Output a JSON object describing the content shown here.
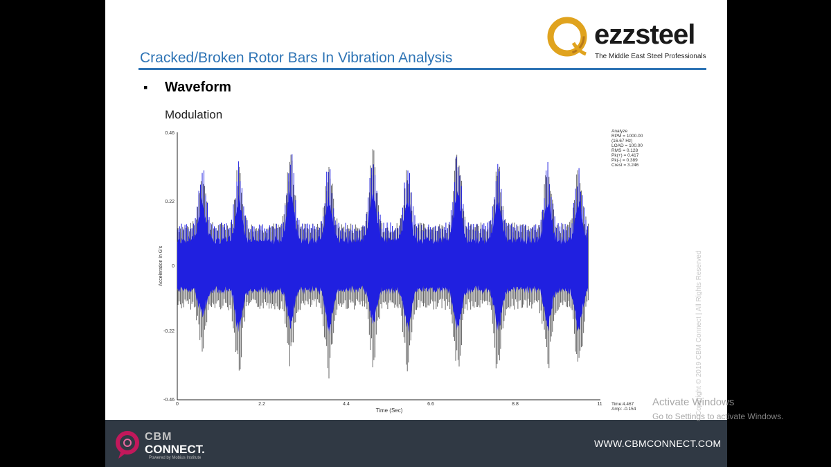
{
  "slide": {
    "title": "Cracked/Broken Rotor Bars In Vibration Analysis",
    "bullet_symbol": "▪",
    "bullet_text": "Waveform",
    "subheading": "Modulation"
  },
  "logo": {
    "word": "ezzsteel",
    "tagline": "The Middle East Steel Professionals",
    "ring_color": "#e0a31e"
  },
  "watermark": "Copyright © 2019 CBM Connect  |  All Rights Reserved",
  "footer": {
    "brand_line1": "CBM",
    "brand_line2": "CONNECT.",
    "brand_tagline": "Powered by Mobius Institute",
    "website": "WWW.CBMCONNECT.COM",
    "accent_color": "#c2185b"
  },
  "os_overlay": {
    "activate_title": "Activate Windows",
    "activate_hint": "Go to Settings to activate Windows."
  },
  "chart_data": {
    "type": "line",
    "title": "",
    "xlabel": "Time (Sec)",
    "ylabel": "Acceleration in G's",
    "xlim": [
      0,
      11
    ],
    "ylim": [
      -0.46,
      0.46
    ],
    "x_ticks": [
      "0",
      "2.2",
      "4.4",
      "6.6",
      "8.8",
      "11"
    ],
    "y_ticks": [
      "0.46",
      "0.22",
      "0",
      "-0.22",
      "-0.46"
    ],
    "grid": false,
    "series": [
      {
        "name": "",
        "color": "#2020e0",
        "envelope_color": "#555555",
        "modulation_peaks_x": [
          0.65,
          1.6,
          2.95,
          3.95,
          5.1,
          6.0,
          7.3,
          8.35,
          9.65,
          10.45
        ],
        "peak_positive_y": [
          0.36,
          0.37,
          0.42,
          0.38,
          0.42,
          0.37,
          0.42,
          0.37,
          0.37,
          0.35
        ],
        "peak_negative_y": [
          -0.3,
          -0.39,
          -0.35,
          -0.39,
          -0.35,
          -0.39,
          -0.39,
          -0.39,
          -0.37,
          -0.39
        ],
        "baseline_amplitude": 0.15
      }
    ],
    "info_box": [
      "Analyze",
      "RPM = 1000.00",
      "(16.67 Hz)",
      "LOAD = 100.00",
      "RMS = 0.128",
      "Pk(+) = 0.417",
      "Pk(-) = 0.389",
      "Crest = 3.246"
    ],
    "cursor": {
      "time_label": "Time:4.467",
      "amp_label": "Amp: -0.154"
    }
  }
}
